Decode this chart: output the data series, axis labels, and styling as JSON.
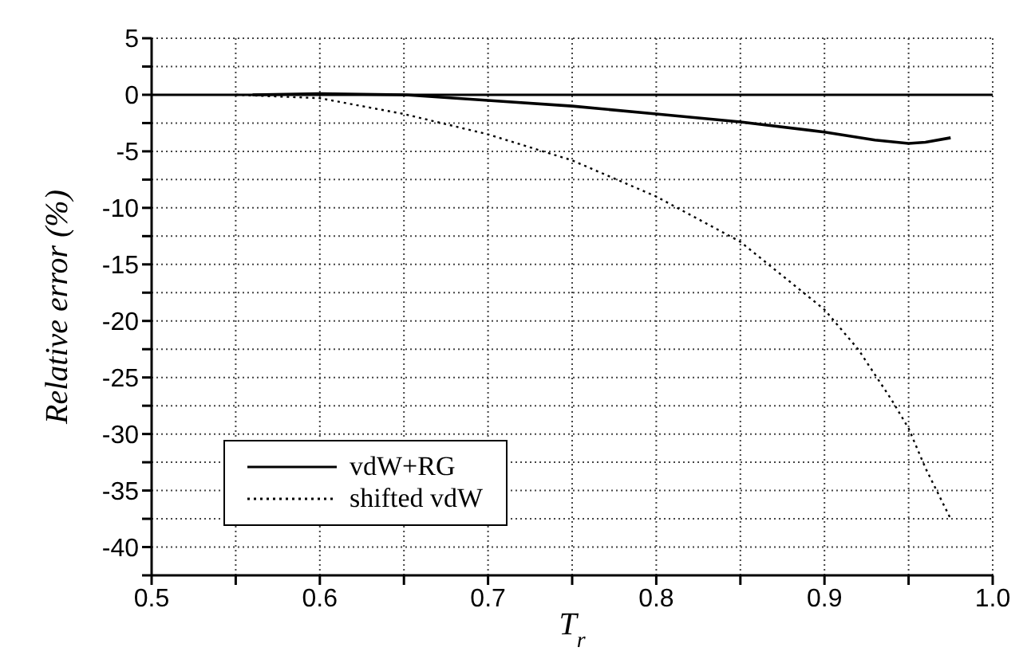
{
  "chart_data": {
    "type": "line",
    "xlabel": "T$_{r}$",
    "ylabel": "Relative error (%)",
    "xlim": [
      0.5,
      1.0
    ],
    "ylim": [
      -42.5,
      5
    ],
    "xticks": [
      0.5,
      {
        "value": 0.55,
        "label": null
      },
      0.6,
      {
        "value": 0.65,
        "label": null
      },
      0.7,
      {
        "value": 0.75,
        "label": null
      },
      0.8,
      {
        "value": 0.85,
        "label": null
      },
      0.9,
      {
        "value": 0.95,
        "label": null
      },
      {
        "value": 1.0,
        "label": "1.0"
      }
    ],
    "yticks": [
      {
        "value": -42.5,
        "label": null
      },
      -40,
      {
        "value": -37.5,
        "label": null
      },
      -35,
      {
        "value": -32.5,
        "label": null
      },
      -30,
      {
        "value": -27.5,
        "label": null
      },
      -25,
      {
        "value": -22.5,
        "label": null
      },
      -20,
      {
        "value": -17.5,
        "label": null
      },
      -15,
      {
        "value": -12.5,
        "label": null
      },
      -10,
      {
        "value": -7.5,
        "label": null
      },
      -5,
      {
        "value": -2.5,
        "label": null
      },
      0,
      {
        "value": 2.5,
        "label": null
      },
      5
    ],
    "grid": true,
    "legend": "bottom left",
    "marker": "none",
    "ref_lines": [
      {
        "axis": "y",
        "value": 0,
        "color": "#000000",
        "line_style": "solid"
      }
    ],
    "series": [
      {
        "name": "vdW+RG",
        "color": "#000000",
        "line_style": "solid",
        "x": [
          0.56,
          0.6,
          0.65,
          0.7,
          0.75,
          0.8,
          0.85,
          0.9,
          0.93,
          0.95,
          0.96,
          0.975
        ],
        "values": [
          0,
          0.1,
          0,
          -0.5,
          -1.0,
          -1.7,
          -2.4,
          -3.3,
          -4.0,
          -4.3,
          -4.2,
          -3.8
        ]
      },
      {
        "name": "shifted vdW",
        "color": "#000000",
        "line_style": "dotted",
        "x": [
          0.55,
          0.6,
          0.65,
          0.7,
          0.75,
          0.8,
          0.85,
          0.9,
          0.92,
          0.94,
          0.95,
          0.96,
          0.975
        ],
        "values": [
          0,
          -0.3,
          -1.7,
          -3.5,
          -5.8,
          -9,
          -13,
          -19,
          -22.5,
          -27,
          -29.5,
          -33,
          -37.5
        ]
      }
    ]
  }
}
